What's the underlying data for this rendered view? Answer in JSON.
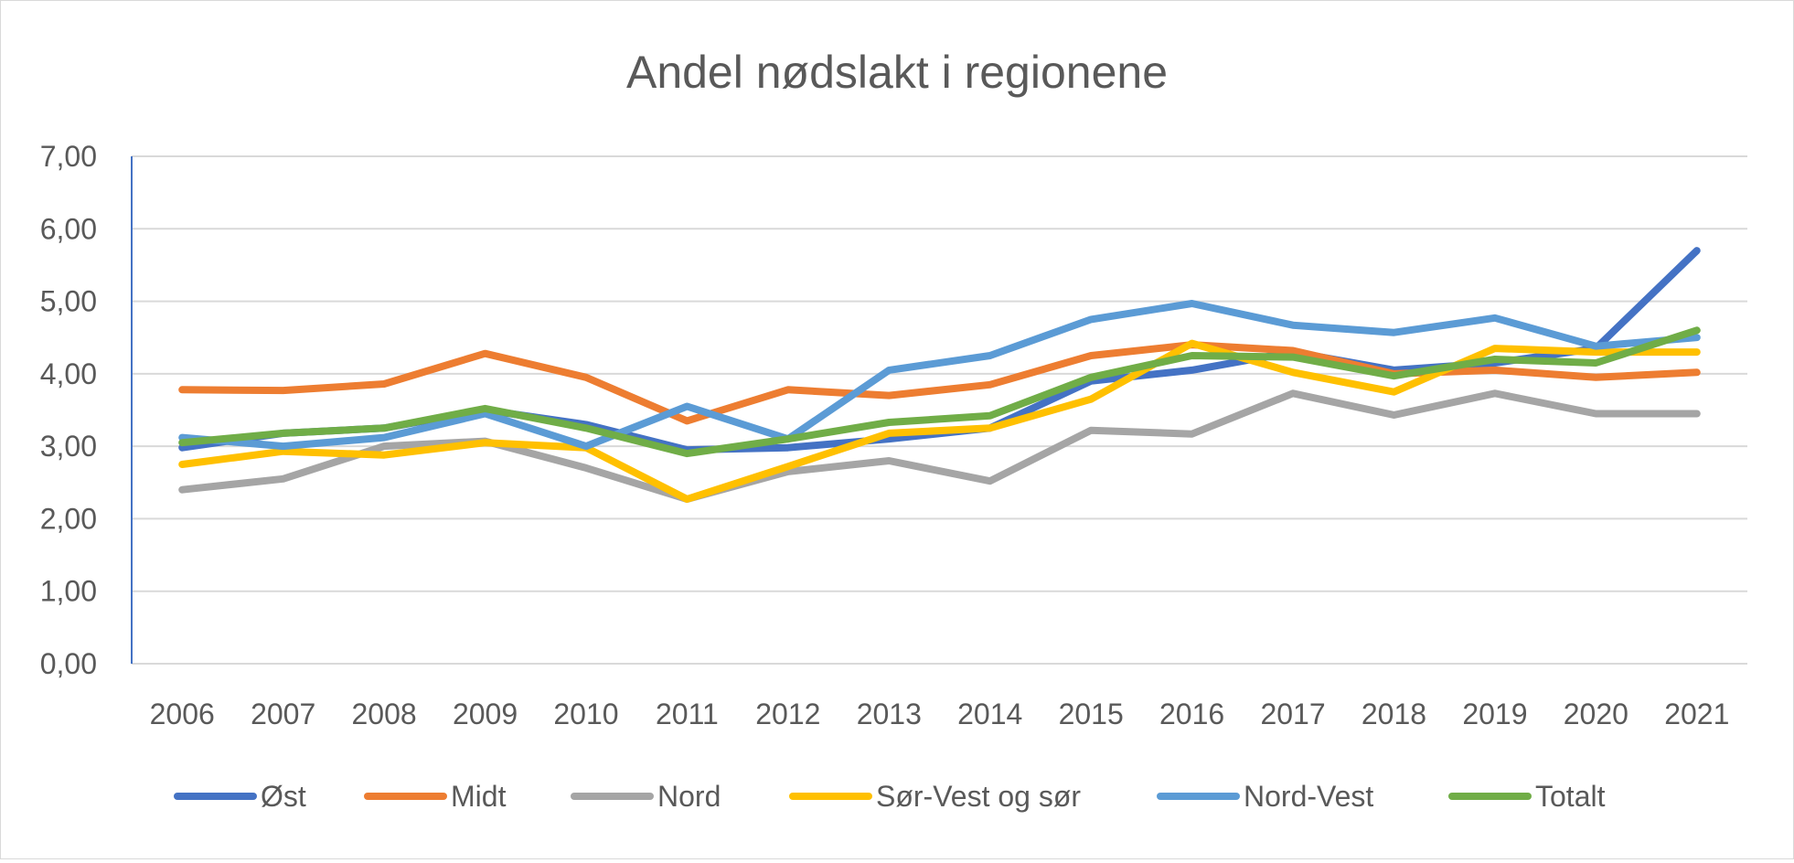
{
  "chart_data": {
    "type": "line",
    "title": "Andel nødslakt i regionene",
    "xlabel": "",
    "ylabel": "",
    "categories": [
      "2006",
      "2007",
      "2008",
      "2009",
      "2010",
      "2011",
      "2012",
      "2013",
      "2014",
      "2015",
      "2016",
      "2017",
      "2018",
      "2019",
      "2020",
      "2021"
    ],
    "y_ticks": [
      "0,00",
      "1,00",
      "2,00",
      "3,00",
      "4,00",
      "5,00",
      "6,00",
      "7,00"
    ],
    "ylim": [
      0,
      7
    ],
    "grid": true,
    "legend_position": "bottom",
    "series": [
      {
        "name": "Øst",
        "color": "#4472C4",
        "values": [
          2.98,
          3.18,
          3.25,
          3.5,
          3.3,
          2.95,
          2.98,
          3.1,
          3.25,
          3.9,
          4.05,
          4.3,
          4.05,
          4.15,
          4.35,
          5.7
        ]
      },
      {
        "name": "Midt",
        "color": "#ED7D31",
        "values": [
          3.78,
          3.77,
          3.86,
          4.28,
          3.95,
          3.35,
          3.78,
          3.7,
          3.85,
          4.25,
          4.4,
          4.32,
          4.0,
          4.05,
          3.95,
          4.02
        ]
      },
      {
        "name": "Nord",
        "color": "#A5A5A5",
        "values": [
          2.4,
          2.55,
          3.0,
          3.07,
          2.7,
          2.27,
          2.65,
          2.8,
          2.52,
          3.22,
          3.17,
          3.73,
          3.43,
          3.73,
          3.45,
          3.45
        ]
      },
      {
        "name": "Sør-Vest og sør",
        "color": "#FFC000",
        "values": [
          2.75,
          2.93,
          2.88,
          3.05,
          2.98,
          2.27,
          2.72,
          3.18,
          3.25,
          3.65,
          4.42,
          4.02,
          3.75,
          4.35,
          4.3,
          4.3
        ]
      },
      {
        "name": "Nord-Vest",
        "color": "#5B9BD5",
        "values": [
          3.12,
          3.0,
          3.12,
          3.45,
          3.0,
          3.55,
          3.1,
          4.05,
          4.25,
          4.75,
          4.97,
          4.67,
          4.57,
          4.77,
          4.38,
          4.5
        ]
      },
      {
        "name": "Totalt",
        "color": "#70AD47",
        "values": [
          3.05,
          3.18,
          3.25,
          3.52,
          3.25,
          2.9,
          3.1,
          3.33,
          3.42,
          3.95,
          4.25,
          4.23,
          3.97,
          4.2,
          4.15,
          4.6
        ]
      }
    ]
  }
}
